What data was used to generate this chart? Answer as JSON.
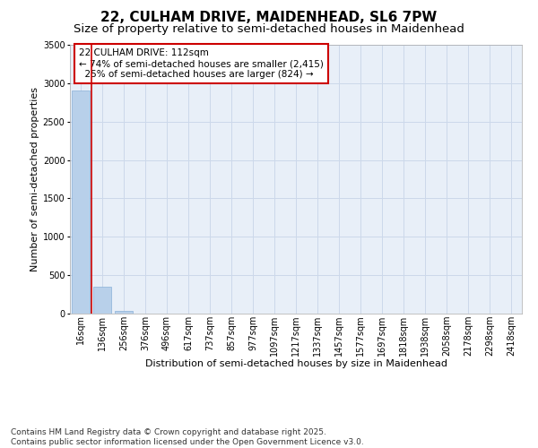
{
  "title": "22, CULHAM DRIVE, MAIDENHEAD, SL6 7PW",
  "subtitle": "Size of property relative to semi-detached houses in Maidenhead",
  "xlabel": "Distribution of semi-detached houses by size in Maidenhead",
  "ylabel": "Number of semi-detached properties",
  "footnote": "Contains HM Land Registry data © Crown copyright and database right 2025.\nContains public sector information licensed under the Open Government Licence v3.0.",
  "categories": [
    "16sqm",
    "136sqm",
    "256sqm",
    "376sqm",
    "496sqm",
    "617sqm",
    "737sqm",
    "857sqm",
    "977sqm",
    "1097sqm",
    "1217sqm",
    "1337sqm",
    "1457sqm",
    "1577sqm",
    "1697sqm",
    "1818sqm",
    "1938sqm",
    "2058sqm",
    "2178sqm",
    "2298sqm",
    "2418sqm"
  ],
  "values": [
    2900,
    350,
    30,
    5,
    2,
    1,
    0,
    0,
    0,
    0,
    0,
    0,
    0,
    0,
    0,
    0,
    0,
    0,
    0,
    0,
    0
  ],
  "ylim": [
    0,
    3500
  ],
  "bar_color": "#b8d0ea",
  "bar_edge_color": "#8ab0d8",
  "grid_color": "#ccd8ea",
  "bg_color": "#e8eff8",
  "vline_color": "#cc0000",
  "annotation_text": "22 CULHAM DRIVE: 112sqm\n← 74% of semi-detached houses are smaller (2,415)\n  25% of semi-detached houses are larger (824) →",
  "annotation_box_color": "#cc0000",
  "title_fontsize": 11,
  "subtitle_fontsize": 9.5,
  "axis_label_fontsize": 8,
  "tick_fontsize": 7,
  "annotation_fontsize": 7.5,
  "footnote_fontsize": 6.5,
  "yticks": [
    0,
    500,
    1000,
    1500,
    2000,
    2500,
    3000,
    3500
  ]
}
